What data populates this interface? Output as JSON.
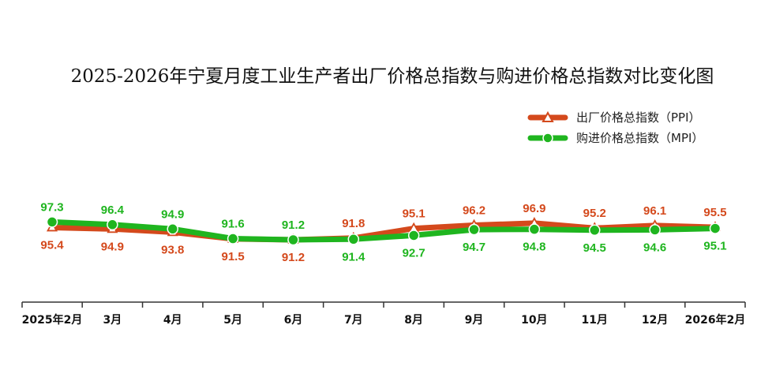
{
  "chart_data": {
    "type": "line",
    "title": "2025-2026年宁夏月度工业生产者出厂价格总指数与购进价格总指数对比变化图",
    "categories": [
      "2025年2月",
      "3月",
      "4月",
      "5月",
      "6月",
      "7月",
      "8月",
      "9月",
      "10月",
      "11月",
      "12月",
      "2026年2月"
    ],
    "series": [
      {
        "name": "出厂价格总指数（PPI）",
        "color": "#d4491c",
        "marker": "triangle",
        "values": [
          95.4,
          94.9,
          93.8,
          91.5,
          91.2,
          91.8,
          95.1,
          96.2,
          96.9,
          95.2,
          96.1,
          95.5
        ]
      },
      {
        "name": "购进价格总指数（MPI）",
        "color": "#1fb51f",
        "marker": "circle",
        "values": [
          97.3,
          96.4,
          94.9,
          91.6,
          91.2,
          91.4,
          92.7,
          94.7,
          94.8,
          94.5,
          94.6,
          95.1
        ]
      }
    ],
    "legend_position": "top-right",
    "grid": false,
    "y_axis_visible": false
  }
}
